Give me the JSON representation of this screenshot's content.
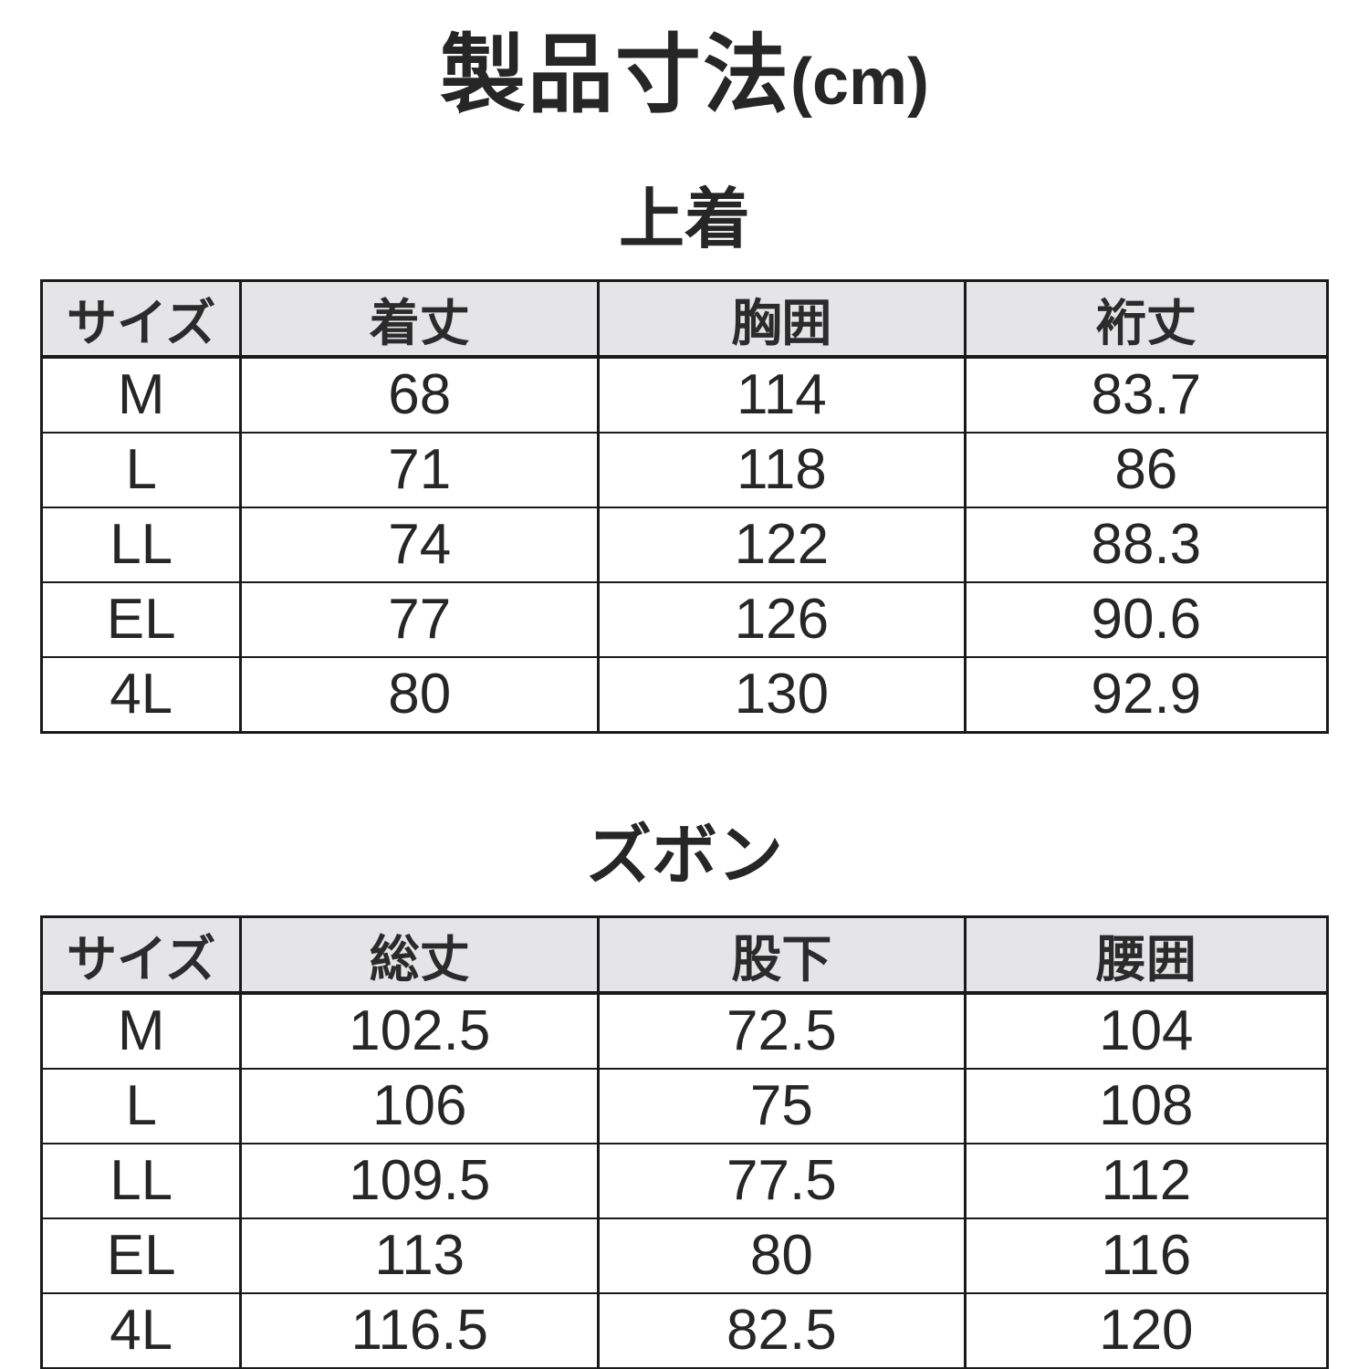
{
  "page_title": {
    "main": "製品寸法",
    "unit": "(cm)"
  },
  "colors": {
    "background": "#ffffff",
    "border": "#1a1a1a",
    "header_bg": "#e5e5e7",
    "text": "#262626"
  },
  "chart_data": [
    {
      "type": "table",
      "title": "上着",
      "columns": [
        "サイズ",
        "着丈",
        "胸囲",
        "裄丈"
      ],
      "rows": [
        [
          "M",
          "68",
          "114",
          "83.7"
        ],
        [
          "L",
          "71",
          "118",
          "86"
        ],
        [
          "LL",
          "74",
          "122",
          "88.3"
        ],
        [
          "EL",
          "77",
          "126",
          "90.6"
        ],
        [
          "4L",
          "80",
          "130",
          "92.9"
        ]
      ]
    },
    {
      "type": "table",
      "title": "ズボン",
      "columns": [
        "サイズ",
        "総丈",
        "股下",
        "腰囲"
      ],
      "rows": [
        [
          "M",
          "102.5",
          "72.5",
          "104"
        ],
        [
          "L",
          "106",
          "75",
          "108"
        ],
        [
          "LL",
          "109.5",
          "77.5",
          "112"
        ],
        [
          "EL",
          "113",
          "80",
          "116"
        ],
        [
          "4L",
          "116.5",
          "82.5",
          "120"
        ]
      ]
    }
  ]
}
